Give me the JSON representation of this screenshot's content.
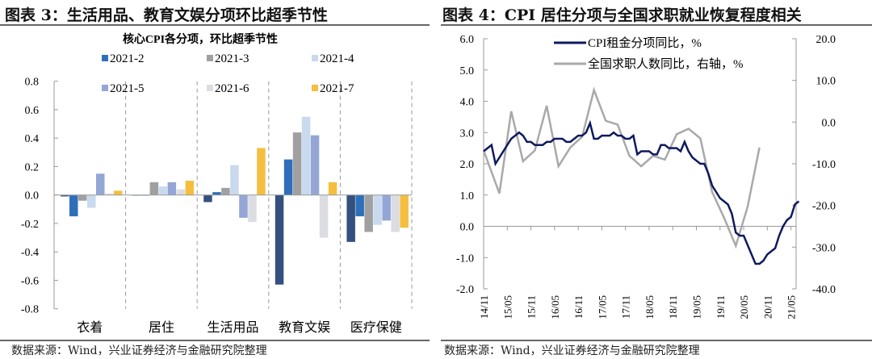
{
  "left_panel": {
    "title": "图表 3：生活用品、教育文娱分项环比超季节性",
    "source": "数据来源：Wind，兴业证券经济与金融研究院整理"
  },
  "right_panel": {
    "title": "图表 4：CPI 居住分项与全国求职就业恢复程度相关",
    "source": "数据来源：Wind，兴业证券经济与金融研究院整理"
  },
  "chart_data": [
    {
      "type": "bar",
      "title": "核心CPI各分项，环比超季节性",
      "categories": [
        "衣着",
        "居住",
        "生活用品",
        "教育文娱",
        "医疗保健"
      ],
      "ylim": [
        -0.8,
        0.8
      ],
      "yticks": [
        "0.8",
        "0.6",
        "0.4",
        "0.2",
        "0.0",
        "-0.2",
        "-0.4",
        "-0.6",
        "-0.8"
      ],
      "legend": "top",
      "series": [
        {
          "name": "",
          "color": "#34507e",
          "legend": false,
          "values": [
            -0.01,
            0,
            -0.05,
            -0.63,
            -0.33
          ]
        },
        {
          "name": "2021-2",
          "color": "#2e6fba",
          "legend": true,
          "values": [
            -0.15,
            0,
            0.02,
            0.25,
            -0.15
          ]
        },
        {
          "name": "2021-3",
          "color": "#a0a0a0",
          "legend": true,
          "values": [
            -0.04,
            0.09,
            0.05,
            0.44,
            -0.26
          ]
        },
        {
          "name": "2021-4",
          "color": "#c9d9ee",
          "legend": true,
          "values": [
            -0.09,
            0.06,
            0.21,
            0.55,
            -0.21
          ]
        },
        {
          "name": "2021-5",
          "color": "#93a6d6",
          "legend": true,
          "values": [
            0.15,
            0.09,
            -0.16,
            0.42,
            -0.18
          ]
        },
        {
          "name": "2021-6",
          "color": "#dcdde3",
          "legend": true,
          "values": [
            0.01,
            0.04,
            -0.19,
            -0.3,
            -0.26
          ]
        },
        {
          "name": "2021-7",
          "color": "#f5be3e",
          "legend": true,
          "values": [
            0.03,
            0.1,
            0.33,
            0.09,
            -0.23
          ]
        }
      ]
    },
    {
      "type": "line",
      "x_start": "14/11",
      "x_unit": "month",
      "xticks": [
        "14/11",
        "15/05",
        "15/11",
        "16/05",
        "16/11",
        "17/05",
        "17/11",
        "18/05",
        "18/11",
        "19/05",
        "19/11",
        "20/05",
        "20/11",
        "21/05"
      ],
      "ylim_left": [
        -2,
        6
      ],
      "yticks_left": [
        "6.0",
        "5.0",
        "4.0",
        "3.0",
        "2.0",
        "1.0",
        "0.0",
        "-1.0",
        "-2.0"
      ],
      "ylim_right": [
        -40,
        20
      ],
      "yticks_right": [
        "20.0",
        "10.0",
        "0.0",
        "-10.0",
        "-20.0",
        "-30.0",
        "-40.0"
      ],
      "legend": "top",
      "series": [
        {
          "name": "CPI租金分项同比，%",
          "axis": "left",
          "color": "#0e1a5e",
          "values": [
            2.4,
            2.5,
            2.6,
            2.0,
            2.2,
            2.4,
            2.6,
            2.8,
            2.9,
            3.0,
            2.9,
            2.7,
            2.7,
            2.6,
            2.6,
            2.6,
            2.7,
            2.7,
            2.8,
            2.8,
            2.8,
            2.7,
            2.7,
            2.8,
            2.9,
            2.9,
            3.0,
            3.3,
            2.8,
            2.8,
            2.9,
            2.9,
            2.9,
            3.0,
            2.9,
            2.9,
            2.8,
            2.8,
            2.9,
            2.3,
            2.4,
            2.4,
            2.4,
            2.3,
            2.3,
            2.6,
            2.6,
            2.5,
            2.5,
            2.5,
            2.4,
            2.7,
            2.4,
            2.2,
            2.1,
            2.0,
            2.0,
            1.7,
            1.3,
            1.1,
            0.9,
            0.8,
            0.7,
            0.4,
            -0.2,
            -0.3,
            -0.3,
            -0.6,
            -0.9,
            -1.2,
            -1.2,
            -1.1,
            -0.9,
            -0.8,
            -0.7,
            -0.3,
            0.0,
            0.2,
            0.3,
            0.7,
            0.8
          ]
        },
        {
          "name": "全国求职人数同比，右轴，%",
          "axis": "right",
          "color": "#a9a9a9",
          "x": [
            0,
            4,
            7,
            10,
            13,
            16,
            19,
            22,
            25,
            28,
            31,
            34,
            37,
            40,
            43,
            46,
            49,
            52,
            55,
            58,
            61,
            64,
            67,
            70
          ],
          "values": [
            -6.8,
            -17.1,
            2.6,
            -9.4,
            -6.8,
            3.9,
            -10.6,
            -6.1,
            -3.5,
            7.7,
            0.3,
            -0.6,
            -8.1,
            -10.6,
            -8.1,
            -9.0,
            -2.9,
            -1.6,
            -3.9,
            -16.8,
            -22.9,
            -29.7,
            -20.3,
            -6.1
          ]
        }
      ]
    }
  ]
}
